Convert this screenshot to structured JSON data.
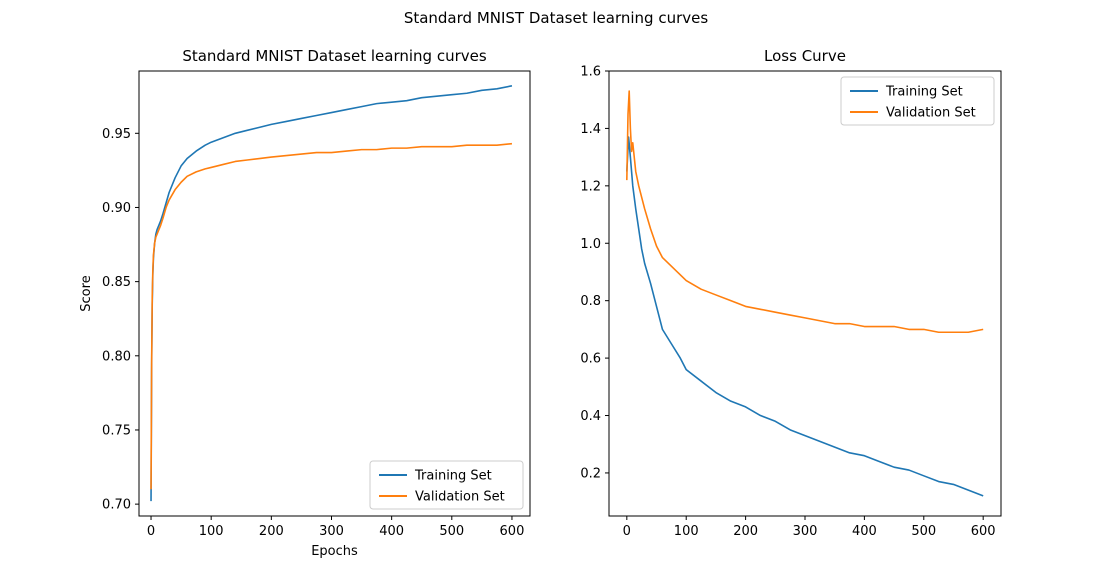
{
  "figure": {
    "suptitle": "Standard MNIST Dataset learning curves"
  },
  "chart_data": [
    {
      "type": "line",
      "title": "Standard MNIST Dataset learning curves",
      "xlabel": "Epochs",
      "ylabel": "Score",
      "xlim": [
        -20,
        630
      ],
      "ylim": [
        0.692,
        0.992
      ],
      "xticks": [
        0,
        100,
        200,
        300,
        400,
        500,
        600
      ],
      "xtick_labels": [
        "0",
        "100",
        "200",
        "300",
        "400",
        "500",
        "600"
      ],
      "yticks": [
        0.7,
        0.75,
        0.8,
        0.85,
        0.9,
        0.95
      ],
      "ytick_labels": [
        "0.70",
        "0.75",
        "0.80",
        "0.85",
        "0.90",
        "0.95"
      ],
      "grid": false,
      "legend_position": "lower-right",
      "series": [
        {
          "name": "Training Set",
          "color": "#1f77b4",
          "x": [
            0,
            1,
            2,
            3,
            4,
            6,
            8,
            10,
            13,
            16,
            20,
            25,
            30,
            40,
            50,
            60,
            75,
            90,
            100,
            120,
            140,
            160,
            180,
            200,
            225,
            250,
            275,
            300,
            325,
            350,
            375,
            400,
            425,
            450,
            475,
            500,
            525,
            550,
            575,
            600
          ],
          "y": [
            0.702,
            0.79,
            0.835,
            0.855,
            0.866,
            0.876,
            0.882,
            0.885,
            0.888,
            0.891,
            0.896,
            0.903,
            0.91,
            0.92,
            0.928,
            0.933,
            0.938,
            0.942,
            0.944,
            0.947,
            0.95,
            0.952,
            0.954,
            0.956,
            0.958,
            0.96,
            0.962,
            0.964,
            0.966,
            0.968,
            0.97,
            0.971,
            0.972,
            0.974,
            0.975,
            0.976,
            0.977,
            0.979,
            0.98,
            0.982
          ]
        },
        {
          "name": "Validation Set",
          "color": "#ff7f0e",
          "x": [
            0,
            1,
            2,
            3,
            4,
            6,
            8,
            10,
            13,
            16,
            20,
            25,
            30,
            40,
            50,
            60,
            75,
            90,
            100,
            120,
            140,
            160,
            180,
            200,
            225,
            250,
            275,
            300,
            325,
            350,
            375,
            400,
            425,
            450,
            475,
            500,
            525,
            550,
            575,
            600
          ],
          "y": [
            0.71,
            0.795,
            0.84,
            0.858,
            0.868,
            0.876,
            0.88,
            0.882,
            0.885,
            0.888,
            0.893,
            0.9,
            0.905,
            0.912,
            0.917,
            0.921,
            0.924,
            0.926,
            0.927,
            0.929,
            0.931,
            0.932,
            0.933,
            0.934,
            0.935,
            0.936,
            0.937,
            0.937,
            0.938,
            0.939,
            0.939,
            0.94,
            0.94,
            0.941,
            0.941,
            0.941,
            0.942,
            0.942,
            0.942,
            0.943
          ]
        }
      ]
    },
    {
      "type": "line",
      "title": "Loss Curve",
      "xlabel": "",
      "ylabel": "",
      "xlim": [
        -30,
        630
      ],
      "ylim": [
        0.05,
        1.6
      ],
      "xticks": [
        0,
        100,
        200,
        300,
        400,
        500,
        600
      ],
      "xtick_labels": [
        "0",
        "100",
        "200",
        "300",
        "400",
        "500",
        "600"
      ],
      "yticks": [
        0.2,
        0.4,
        0.6,
        0.8,
        1.0,
        1.2,
        1.4,
        1.6
      ],
      "ytick_labels": [
        "0.2",
        "0.4",
        "0.6",
        "0.8",
        "1.0",
        "1.2",
        "1.4",
        "1.6"
      ],
      "grid": false,
      "legend_position": "upper-right",
      "series": [
        {
          "name": "Training Set",
          "color": "#1f77b4",
          "x": [
            0,
            3,
            6,
            10,
            15,
            20,
            25,
            30,
            40,
            50,
            60,
            75,
            90,
            100,
            125,
            150,
            175,
            200,
            225,
            250,
            275,
            300,
            325,
            350,
            375,
            400,
            425,
            450,
            475,
            500,
            525,
            550,
            575,
            600
          ],
          "y": [
            1.25,
            1.37,
            1.3,
            1.2,
            1.12,
            1.05,
            0.98,
            0.93,
            0.86,
            0.78,
            0.7,
            0.65,
            0.6,
            0.56,
            0.52,
            0.48,
            0.45,
            0.43,
            0.4,
            0.38,
            0.35,
            0.33,
            0.31,
            0.29,
            0.27,
            0.26,
            0.24,
            0.22,
            0.21,
            0.19,
            0.17,
            0.16,
            0.14,
            0.12
          ]
        },
        {
          "name": "Validation Set",
          "color": "#ff7f0e",
          "x": [
            0,
            2,
            4,
            6,
            8,
            10,
            15,
            20,
            25,
            30,
            40,
            50,
            60,
            75,
            90,
            100,
            125,
            150,
            175,
            200,
            225,
            250,
            275,
            300,
            325,
            350,
            375,
            400,
            425,
            450,
            475,
            500,
            525,
            550,
            575,
            600
          ],
          "y": [
            1.22,
            1.45,
            1.53,
            1.4,
            1.32,
            1.35,
            1.25,
            1.2,
            1.16,
            1.12,
            1.05,
            0.99,
            0.95,
            0.92,
            0.89,
            0.87,
            0.84,
            0.82,
            0.8,
            0.78,
            0.77,
            0.76,
            0.75,
            0.74,
            0.73,
            0.72,
            0.72,
            0.71,
            0.71,
            0.71,
            0.7,
            0.7,
            0.69,
            0.69,
            0.69,
            0.7
          ]
        }
      ]
    }
  ]
}
